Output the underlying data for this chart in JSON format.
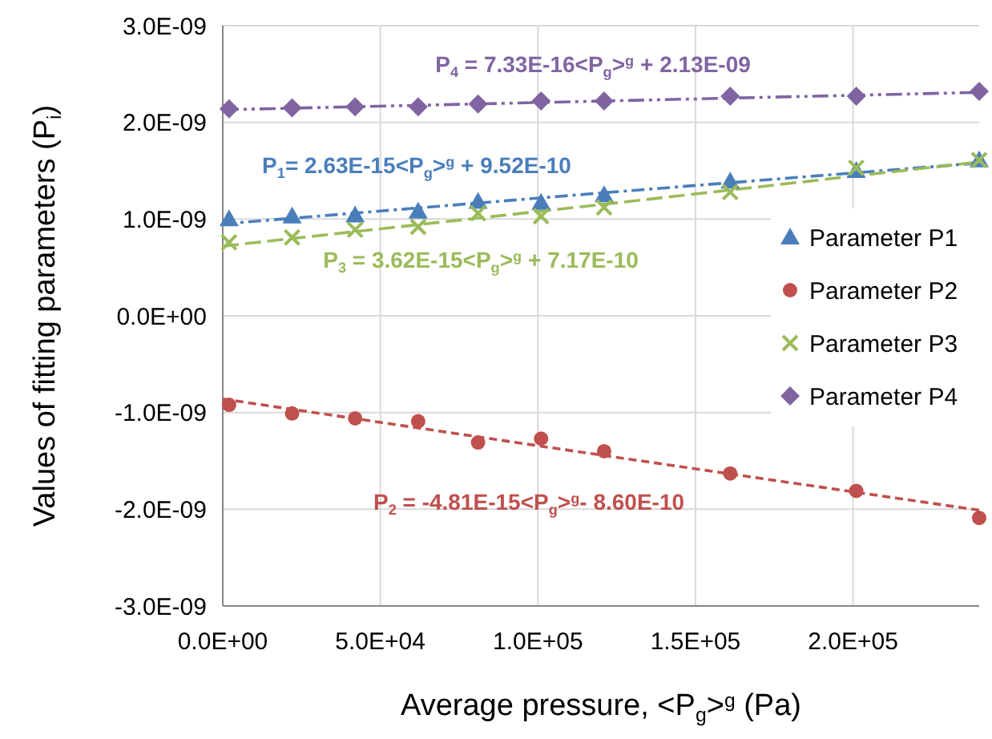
{
  "chart_data": {
    "type": "scatter",
    "xlabel": "Average pressure, <P$_{g}$>$^{g}$ (Pa)",
    "ylabel": "Values of fitting parameters (P$_{i}$)",
    "x": [
      2000,
      22000,
      42000,
      62000,
      81000,
      101000,
      121000,
      161000,
      201000,
      240000
    ],
    "xlim": [
      0,
      240000
    ],
    "xticks": [
      {
        "value": 0,
        "label": "0.0E+00"
      },
      {
        "value": 50000,
        "label": "5.0E+04"
      },
      {
        "value": 100000,
        "label": "1.0E+05"
      },
      {
        "value": 150000,
        "label": "1.5E+05"
      },
      {
        "value": 200000,
        "label": "2.0E+05"
      }
    ],
    "ylim": [
      -3e-09,
      3e-09
    ],
    "yticks": [
      {
        "value": -3e-09,
        "label": "-3.0E-09"
      },
      {
        "value": -2e-09,
        "label": "-2.0E-09"
      },
      {
        "value": -1e-09,
        "label": "-1.0E-09"
      },
      {
        "value": 0,
        "label": "0.0E+00"
      },
      {
        "value": 1e-09,
        "label": "1.0E-09"
      },
      {
        "value": 2e-09,
        "label": "2.0E-09"
      },
      {
        "value": 3e-09,
        "label": "3.0E-09"
      }
    ],
    "grid": true,
    "legend": "right",
    "series": [
      {
        "name": "Parameter P1",
        "color": "#4a7ebb",
        "marker": "triangle",
        "values": [
          1e-09,
          1.03e-09,
          1.04e-09,
          1.08e-09,
          1.18e-09,
          1.17e-09,
          1.25e-09,
          1.39e-09,
          1.5e-09,
          1.61e-09
        ]
      },
      {
        "name": "Parameter P2",
        "color": "#c0504d",
        "marker": "circle",
        "values": [
          -9.2e-10,
          -1.01e-09,
          -1.06e-09,
          -1.09e-09,
          -1.31e-09,
          -1.27e-09,
          -1.4e-09,
          -1.63e-09,
          -1.81e-09,
          -2.09e-09
        ]
      },
      {
        "name": "Parameter P3",
        "color": "#9bbb59",
        "marker": "cross",
        "values": [
          7.6e-10,
          8.1e-10,
          8.9e-10,
          9.2e-10,
          1.06e-09,
          1.03e-09,
          1.12e-09,
          1.28e-09,
          1.53e-09,
          1.61e-09
        ]
      },
      {
        "name": "Parameter P4",
        "color": "#8064a2",
        "marker": "diamond",
        "values": [
          2.14e-09,
          2.15e-09,
          2.16e-09,
          2.16e-09,
          2.19e-09,
          2.22e-09,
          2.22e-09,
          2.27e-09,
          2.27e-09,
          2.32e-09
        ]
      },
      {
        "type": "line",
        "color": "#4a7ebb",
        "line_style": "dashdot",
        "x": [
          0,
          120000,
          240000
        ],
        "values": [
          9.5e-10,
          1.27e-09,
          1.58e-09
        ]
      },
      {
        "type": "line",
        "color": "#c0504d",
        "line_style": "dashed",
        "x": [
          0,
          120000,
          240000
        ],
        "values": [
          -8.6e-10,
          -1.44e-09,
          -2.01e-09
        ]
      },
      {
        "type": "line",
        "color": "#9bbb59",
        "line_style": "longdash",
        "x": [
          0,
          120000,
          240000
        ],
        "values": [
          7.2e-10,
          1.15e-09,
          1.59e-09
        ]
      },
      {
        "type": "line",
        "color": "#8064a2",
        "line_style": "dashdotdot",
        "x": [
          0,
          120000,
          240000
        ],
        "values": [
          2.13e-09,
          2.22e-09,
          2.31e-09
        ]
      }
    ],
    "annotations": [
      "P$_{1}$= 2.63E-15<P$_{g}$>$^{g}$ + 9.52E-10",
      "P$_{2}$ = -4.81E-15<P$_{g}$>$^{g}$- 8.60E-10",
      "P$_{3}$ = 3.62E-15<P$_{g}$>$^{g}$ + 7.17E-10",
      "P$_{4}$ = 7.33E-16<P$_{g}$>$^{g}$ + 2.13E-09"
    ]
  }
}
